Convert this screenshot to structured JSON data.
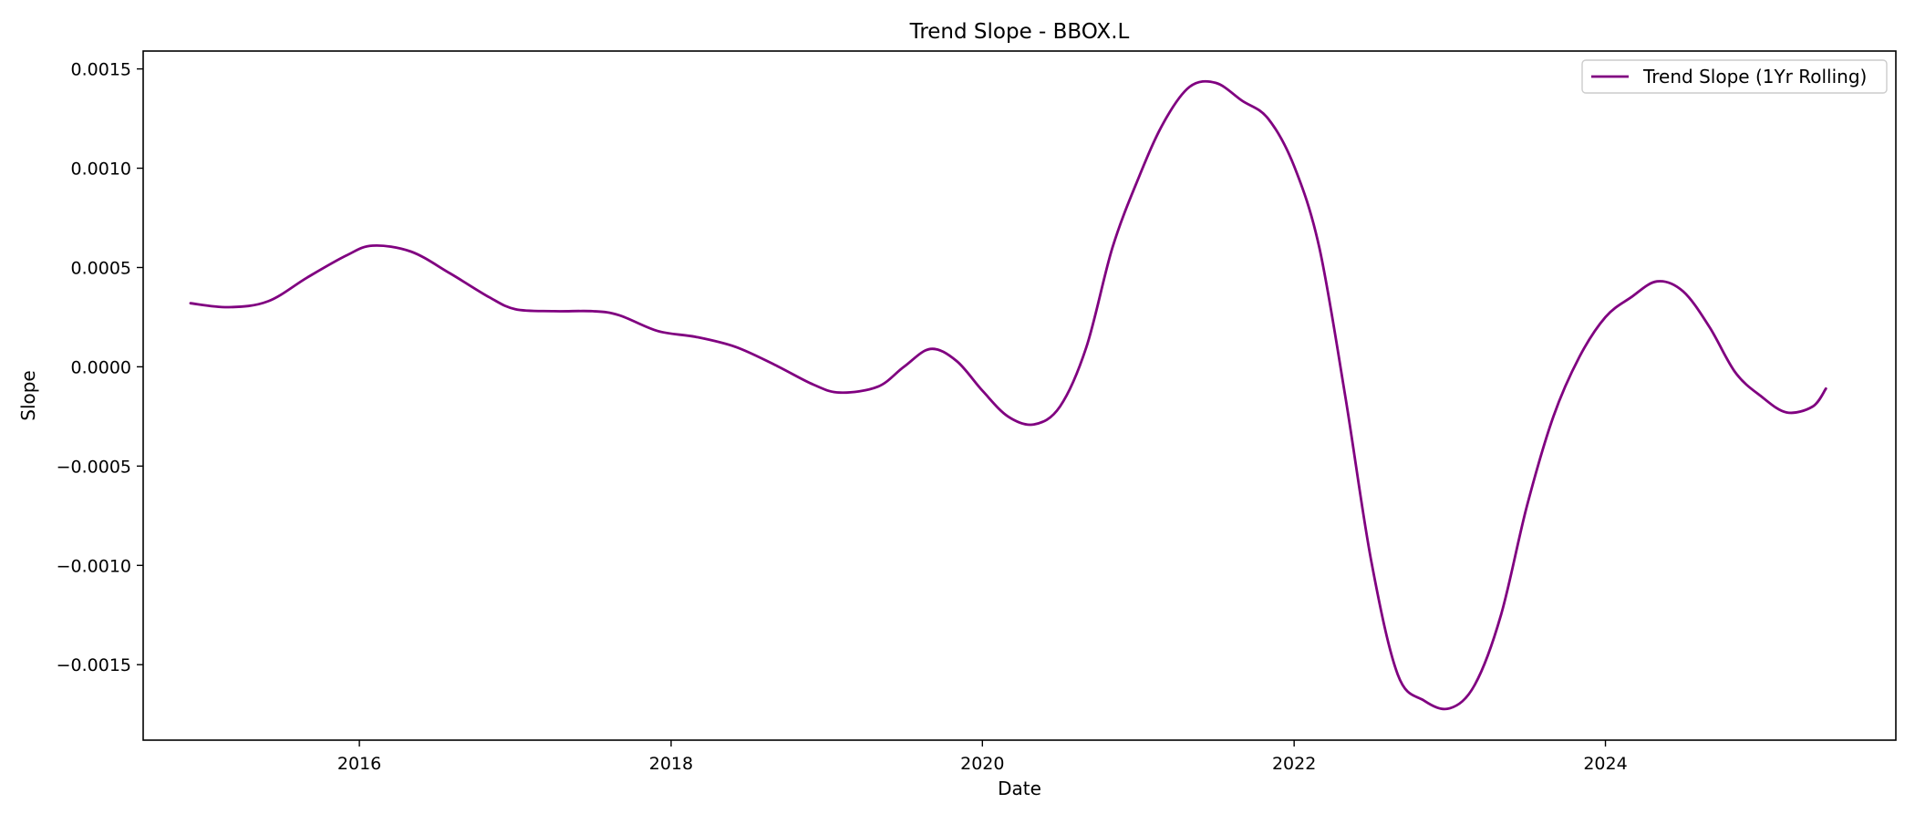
{
  "chart_data": {
    "type": "line",
    "title": "Trend Slope - BBOX.L",
    "xlabel": "Date",
    "ylabel": "Slope",
    "xlim": [
      "2014-08-12",
      "2025-11-12"
    ],
    "ylim": [
      -0.00188,
      0.00159
    ],
    "x_ticks": [
      "2016",
      "2018",
      "2020",
      "2022",
      "2024"
    ],
    "y_ticks": [
      "0.0015",
      "0.0010",
      "0.0005",
      "0.0000",
      "−0.0005",
      "−0.0010",
      "−0.0015"
    ],
    "y_tick_values": [
      0.0015,
      0.001,
      0.0005,
      0.0,
      -0.0005,
      -0.001,
      -0.0015
    ],
    "grid": false,
    "legend": {
      "position": "top-right",
      "entries": [
        "Trend Slope (1Yr Rolling)"
      ]
    },
    "series": [
      {
        "name": "Trend Slope (1Yr Rolling)",
        "color": "#800080",
        "points": [
          [
            "2014-12-01",
            0.00032
          ],
          [
            "2015-03-01",
            0.0003
          ],
          [
            "2015-06-01",
            0.00033
          ],
          [
            "2015-09-01",
            0.00045
          ],
          [
            "2015-12-01",
            0.00056
          ],
          [
            "2016-02-01",
            0.00061
          ],
          [
            "2016-05-01",
            0.00058
          ],
          [
            "2016-08-01",
            0.00047
          ],
          [
            "2016-11-01",
            0.00035
          ],
          [
            "2017-01-01",
            0.00029
          ],
          [
            "2017-04-01",
            0.00028
          ],
          [
            "2017-07-01",
            0.00028
          ],
          [
            "2017-09-01",
            0.00026
          ],
          [
            "2017-12-01",
            0.00018
          ],
          [
            "2018-03-01",
            0.00015
          ],
          [
            "2018-06-01",
            0.0001
          ],
          [
            "2018-09-01",
            1e-05
          ],
          [
            "2018-12-01",
            -9e-05
          ],
          [
            "2019-02-01",
            -0.00013
          ],
          [
            "2019-05-01",
            -0.0001
          ],
          [
            "2019-07-01",
            0.0
          ],
          [
            "2019-09-01",
            9e-05
          ],
          [
            "2019-11-01",
            3e-05
          ],
          [
            "2020-01-01",
            -0.00012
          ],
          [
            "2020-03-01",
            -0.00025
          ],
          [
            "2020-05-01",
            -0.00029
          ],
          [
            "2020-07-01",
            -0.0002
          ],
          [
            "2020-09-01",
            0.0001
          ],
          [
            "2020-11-01",
            0.0006
          ],
          [
            "2021-01-01",
            0.00095
          ],
          [
            "2021-03-01",
            0.00123
          ],
          [
            "2021-05-01",
            0.00141
          ],
          [
            "2021-07-01",
            0.00143
          ],
          [
            "2021-09-01",
            0.00134
          ],
          [
            "2021-11-01",
            0.00125
          ],
          [
            "2022-01-01",
            0.00101
          ],
          [
            "2022-03-01",
            0.0006
          ],
          [
            "2022-05-01",
            -0.00015
          ],
          [
            "2022-07-01",
            -0.00098
          ],
          [
            "2022-09-01",
            -0.00155
          ],
          [
            "2022-11-01",
            -0.00168
          ],
          [
            "2023-01-01",
            -0.00172
          ],
          [
            "2023-03-01",
            -0.0016
          ],
          [
            "2023-05-01",
            -0.00125
          ],
          [
            "2023-07-01",
            -0.0007
          ],
          [
            "2023-09-01",
            -0.00025
          ],
          [
            "2023-11-01",
            5e-05
          ],
          [
            "2024-01-01",
            0.00025
          ],
          [
            "2024-03-01",
            0.00035
          ],
          [
            "2024-05-01",
            0.00043
          ],
          [
            "2024-07-01",
            0.00038
          ],
          [
            "2024-09-01",
            0.0002
          ],
          [
            "2024-11-01",
            -3e-05
          ],
          [
            "2025-01-01",
            -0.00015
          ],
          [
            "2025-03-01",
            -0.00023
          ],
          [
            "2025-05-01",
            -0.0002
          ],
          [
            "2025-06-01",
            -0.00011
          ]
        ]
      }
    ]
  }
}
